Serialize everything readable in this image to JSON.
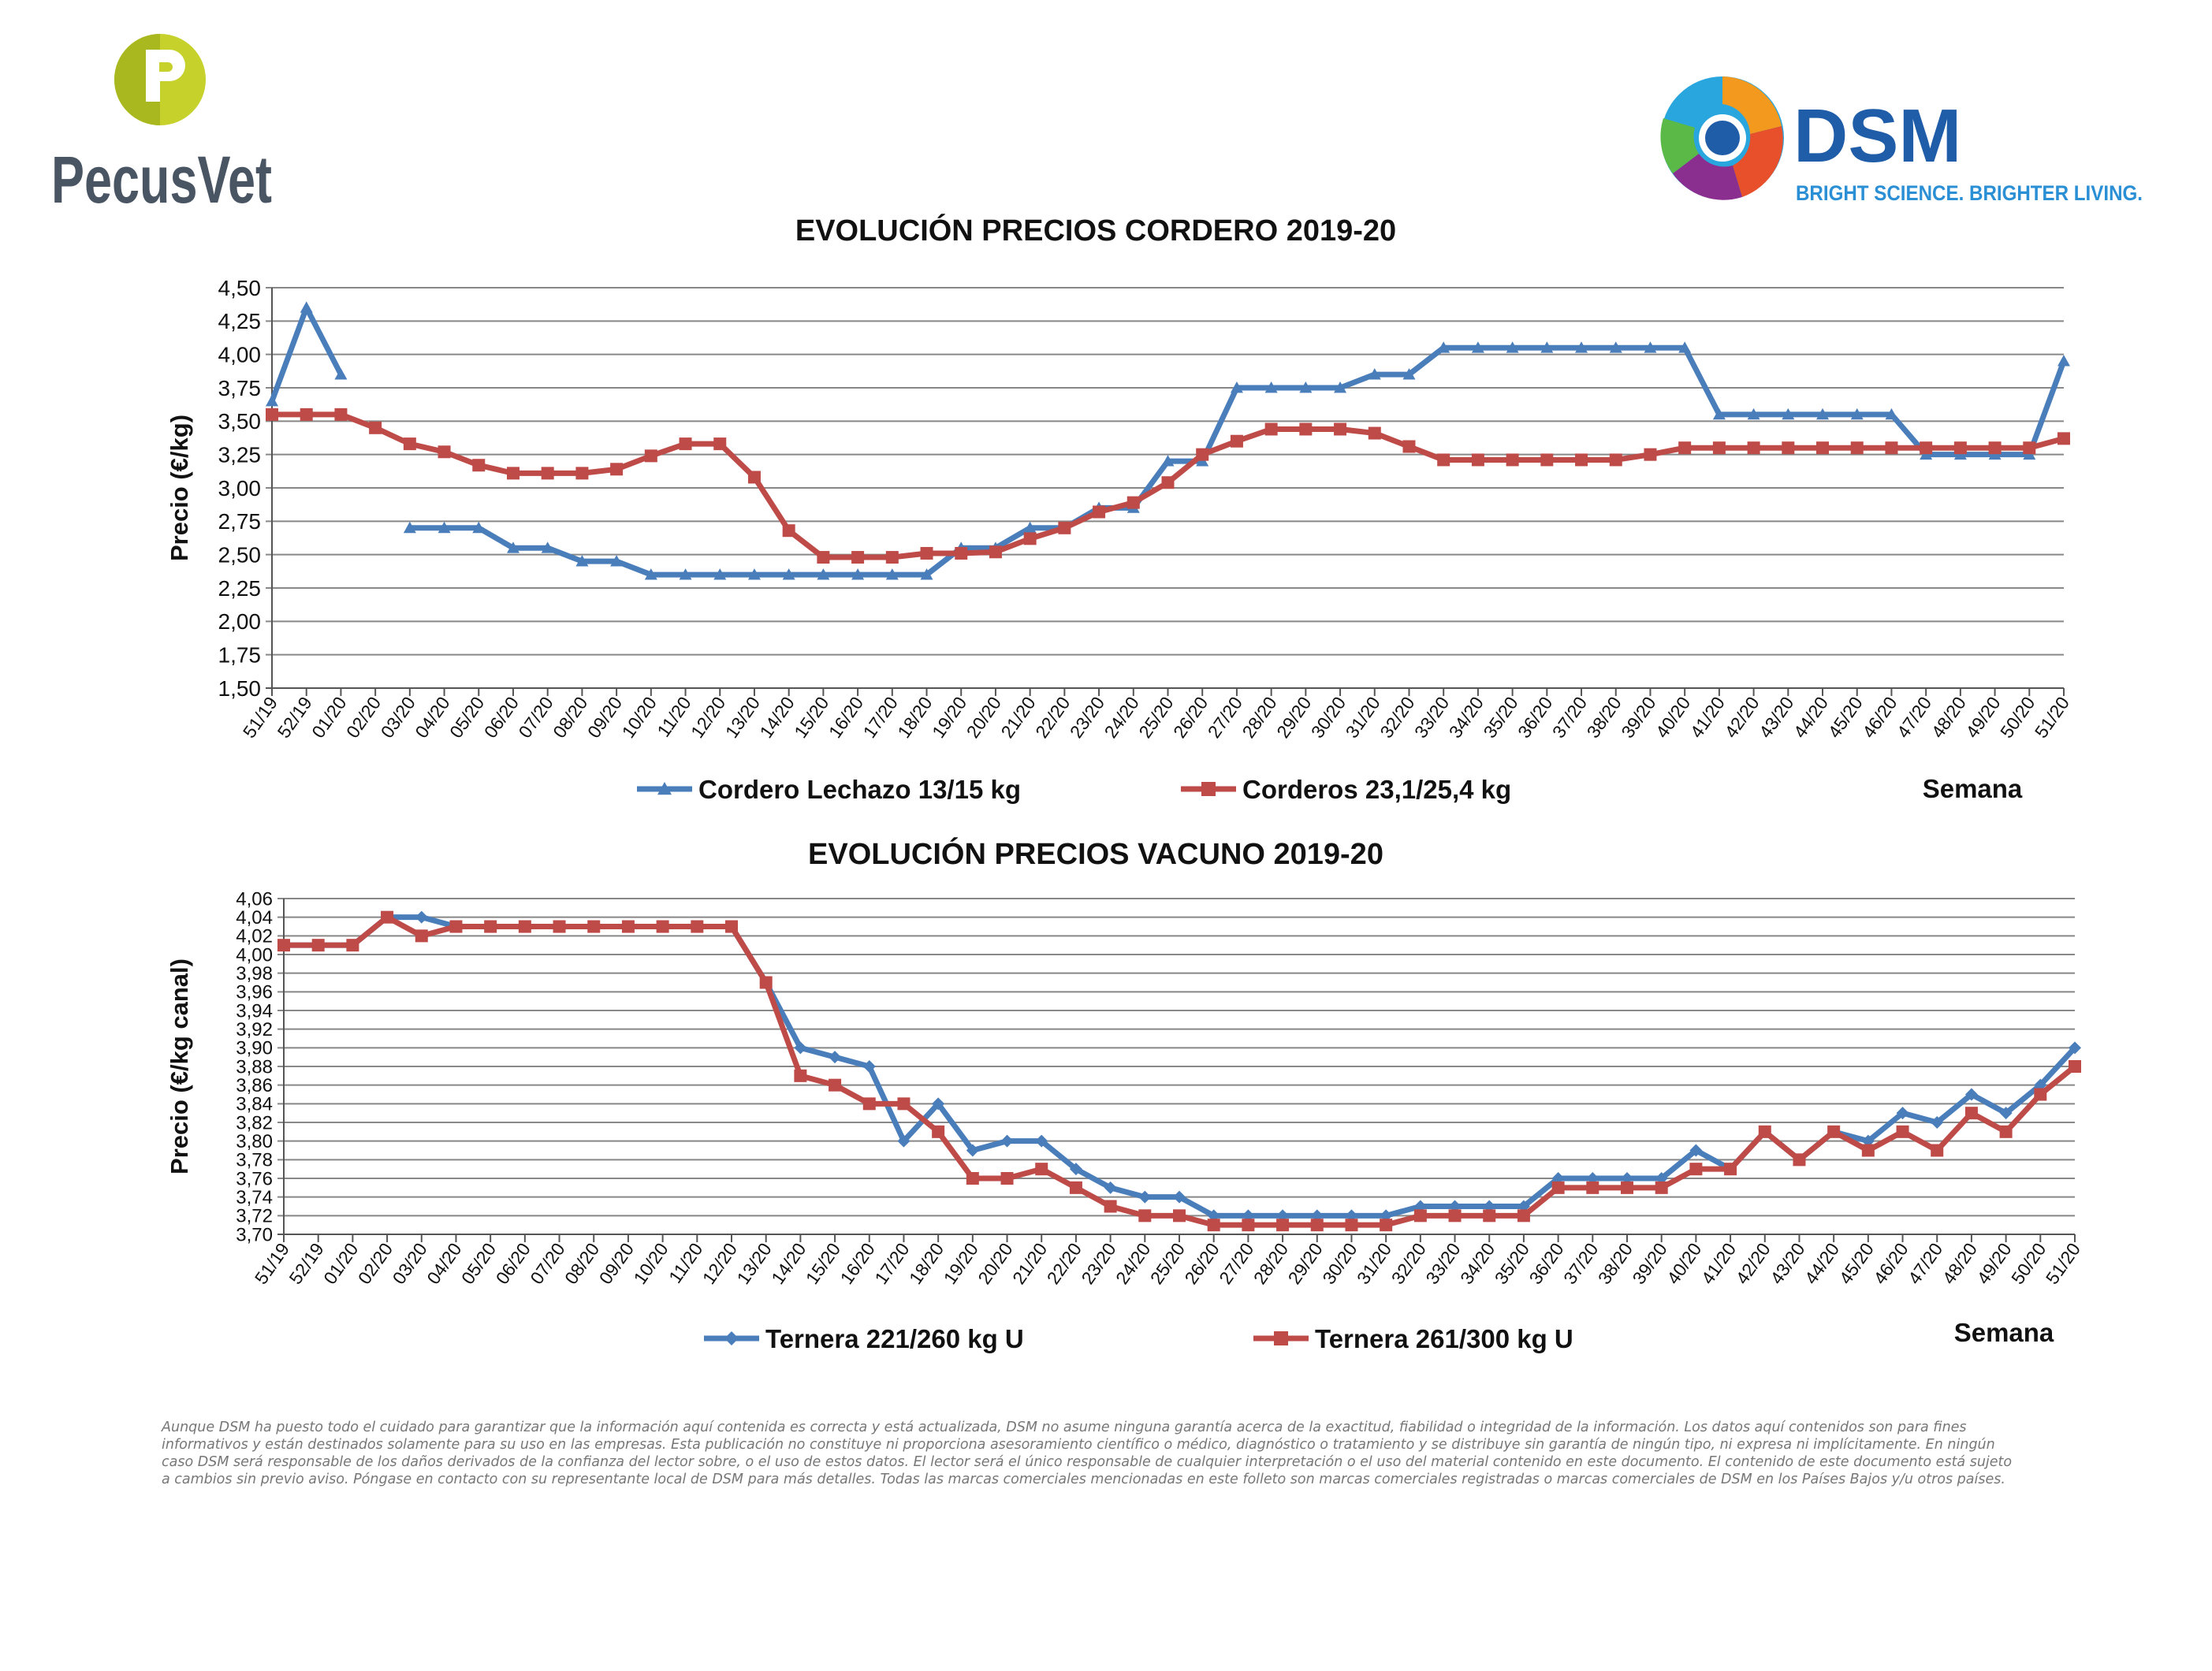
{
  "brand": {
    "pecus_name": "PecusVet",
    "pecus_mark_letter": "P",
    "dsm_name": "DSM",
    "dsm_tagline": "BRIGHT SCIENCE. BRIGHTER LIVING.",
    "colors": {
      "pecus_green": "#c6d12b",
      "pecus_text": "#4a5563",
      "dsm_blue": "#1f5da8",
      "dsm_tagline": "#2a8fd4"
    }
  },
  "chart_data": [
    {
      "type": "line",
      "title": "EVOLUCIÓN PRECIOS CORDERO 2019-20",
      "xlabel": "Semana",
      "ylabel": "Precio (€/kg)",
      "ylim": [
        1.5,
        4.5
      ],
      "yticks": [
        "1,50",
        "1,75",
        "2,00",
        "2,25",
        "2,50",
        "2,75",
        "3,00",
        "3,25",
        "3,50",
        "3,75",
        "4,00",
        "4,25",
        "4,50"
      ],
      "grid": true,
      "legend": "bottom",
      "categories": [
        "51/19",
        "52/19",
        "01/20",
        "02/20",
        "03/20",
        "04/20",
        "05/20",
        "06/20",
        "07/20",
        "08/20",
        "09/20",
        "10/20",
        "11/20",
        "12/20",
        "13/20",
        "14/20",
        "15/20",
        "16/20",
        "17/20",
        "18/20",
        "19/20",
        "20/20",
        "21/20",
        "22/20",
        "23/20",
        "24/20",
        "25/20",
        "26/20",
        "27/20",
        "28/20",
        "29/20",
        "30/20",
        "31/20",
        "32/20",
        "33/20",
        "34/20",
        "35/20",
        "36/20",
        "37/20",
        "38/20",
        "39/20",
        "40/20",
        "41/20",
        "42/20",
        "43/20",
        "44/20",
        "45/20",
        "46/20",
        "47/20",
        "48/20",
        "49/20",
        "50/20",
        "51/20"
      ],
      "series": [
        {
          "name": "Cordero Lechazo 13/15 kg",
          "color": "#4a7ebb",
          "marker": "triangle",
          "values": [
            3.65,
            4.35,
            3.85,
            null,
            2.7,
            2.7,
            2.7,
            2.55,
            2.55,
            2.45,
            2.45,
            2.35,
            2.35,
            2.35,
            2.35,
            2.35,
            2.35,
            2.35,
            2.35,
            2.35,
            2.55,
            2.55,
            2.7,
            2.7,
            2.85,
            2.85,
            3.2,
            3.2,
            3.75,
            3.75,
            3.75,
            3.75,
            3.85,
            3.85,
            4.05,
            4.05,
            4.05,
            4.05,
            4.05,
            4.05,
            4.05,
            4.05,
            3.55,
            3.55,
            3.55,
            3.55,
            3.55,
            3.55,
            3.25,
            3.25,
            3.25,
            3.25,
            3.95
          ]
        },
        {
          "name": "Corderos 23,1/25,4 kg",
          "color": "#be4b48",
          "marker": "square",
          "values": [
            3.55,
            3.55,
            3.55,
            3.45,
            3.33,
            3.27,
            3.17,
            3.11,
            3.11,
            3.11,
            3.14,
            3.24,
            3.33,
            3.33,
            3.08,
            2.68,
            2.48,
            2.48,
            2.48,
            2.51,
            2.51,
            2.52,
            2.62,
            2.7,
            2.82,
            2.89,
            3.04,
            3.25,
            3.35,
            3.44,
            3.44,
            3.44,
            3.41,
            3.31,
            3.21,
            3.21,
            3.21,
            3.21,
            3.21,
            3.21,
            3.25,
            3.3,
            3.3,
            3.3,
            3.3,
            3.3,
            3.3,
            3.3,
            3.3,
            3.3,
            3.3,
            3.3,
            3.37
          ]
        }
      ]
    },
    {
      "type": "line",
      "title": "EVOLUCIÓN PRECIOS VACUNO 2019-20",
      "xlabel": "Semana",
      "ylabel": "Precio (€/kg canal)",
      "ylim": [
        3.7,
        4.06
      ],
      "yticks": [
        "3,70",
        "3,72",
        "3,74",
        "3,76",
        "3,78",
        "3,80",
        "3,82",
        "3,84",
        "3,86",
        "3,88",
        "3,90",
        "3,92",
        "3,94",
        "3,96",
        "3,98",
        "4,00",
        "4,02",
        "4,04",
        "4,06"
      ],
      "grid": true,
      "legend": "bottom",
      "categories": [
        "51/19",
        "52/19",
        "01/20",
        "02/20",
        "03/20",
        "04/20",
        "05/20",
        "06/20",
        "07/20",
        "08/20",
        "09/20",
        "10/20",
        "11/20",
        "12/20",
        "13/20",
        "14/20",
        "15/20",
        "16/20",
        "17/20",
        "18/20",
        "19/20",
        "20/20",
        "21/20",
        "22/20",
        "23/20",
        "24/20",
        "25/20",
        "26/20",
        "27/20",
        "28/20",
        "29/20",
        "30/20",
        "31/20",
        "32/20",
        "33/20",
        "34/20",
        "35/20",
        "36/20",
        "37/20",
        "38/20",
        "39/20",
        "40/20",
        "41/20",
        "42/20",
        "43/20",
        "44/20",
        "45/20",
        "46/20",
        "47/20",
        "48/20",
        "49/20",
        "50/20",
        "51/20"
      ],
      "series": [
        {
          "name": "Ternera 221/260 kg U",
          "color": "#4a7ebb",
          "marker": "diamond",
          "values": [
            4.01,
            4.01,
            4.01,
            4.04,
            4.04,
            4.03,
            4.03,
            4.03,
            4.03,
            4.03,
            4.03,
            4.03,
            4.03,
            4.03,
            3.97,
            3.9,
            3.89,
            3.88,
            3.8,
            3.84,
            3.79,
            3.8,
            3.8,
            3.77,
            3.75,
            3.74,
            3.74,
            3.72,
            3.72,
            3.72,
            3.72,
            3.72,
            3.72,
            3.73,
            3.73,
            3.73,
            3.73,
            3.76,
            3.76,
            3.76,
            3.76,
            3.79,
            3.77,
            3.81,
            3.78,
            3.81,
            3.8,
            3.83,
            3.82,
            3.85,
            3.83,
            3.86,
            3.9
          ]
        },
        {
          "name": "Ternera 261/300 kg U",
          "color": "#be4b48",
          "marker": "square",
          "values": [
            4.01,
            4.01,
            4.01,
            4.04,
            4.02,
            4.03,
            4.03,
            4.03,
            4.03,
            4.03,
            4.03,
            4.03,
            4.03,
            4.03,
            3.97,
            3.87,
            3.86,
            3.84,
            3.84,
            3.81,
            3.76,
            3.76,
            3.77,
            3.75,
            3.73,
            3.72,
            3.72,
            3.71,
            3.71,
            3.71,
            3.71,
            3.71,
            3.71,
            3.72,
            3.72,
            3.72,
            3.72,
            3.75,
            3.75,
            3.75,
            3.75,
            3.77,
            3.77,
            3.81,
            3.78,
            3.81,
            3.79,
            3.81,
            3.79,
            3.83,
            3.81,
            3.85,
            3.88
          ]
        }
      ]
    }
  ],
  "disclaimer": "Aunque DSM ha puesto todo el cuidado para garantizar que la información aquí contenida es correcta y está actualizada, DSM no asume ninguna garantía acerca de la exactitud, fiabilidad o integridad de la información. Los datos aquí contenidos son para fines informativos y están destinados solamente para su uso en las empresas. Esta publicación no constituye ni proporciona asesoramiento científico o médico, diagnóstico o tratamiento y se distribuye sin garantía de ningún tipo, ni expresa ni implícitamente. En ningún caso DSM será responsable de los daños derivados de la confianza del lector sobre, o el uso de estos datos. El lector será el único responsable de cualquier interpretación o el uso del material contenido en este documento. El contenido de este documento está sujeto a cambios sin previo aviso. Póngase en contacto con su representante local de DSM para más detalles. Todas las marcas comerciales mencionadas en este folleto son marcas comerciales registradas o marcas comerciales de DSM en los Países Bajos y/u otros países."
}
